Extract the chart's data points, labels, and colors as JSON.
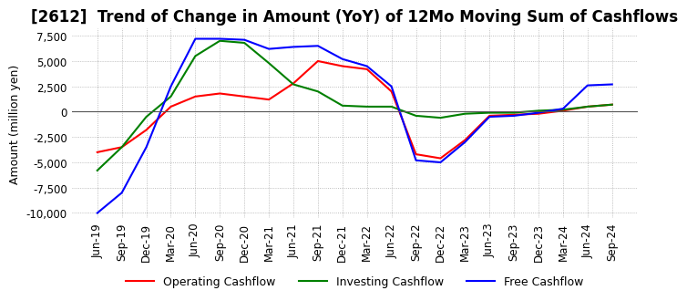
{
  "title": "[2612]  Trend of Change in Amount (YoY) of 12Mo Moving Sum of Cashflows",
  "ylabel": "Amount (million yen)",
  "ylim": [
    -10500,
    8200
  ],
  "yticks": [
    -10000,
    -7500,
    -5000,
    -2500,
    0,
    2500,
    5000,
    7500
  ],
  "x_labels": [
    "Jun-19",
    "Sep-19",
    "Dec-19",
    "Mar-20",
    "Jun-20",
    "Sep-20",
    "Dec-20",
    "Mar-21",
    "Jun-21",
    "Sep-21",
    "Dec-21",
    "Mar-22",
    "Jun-22",
    "Sep-22",
    "Dec-22",
    "Mar-23",
    "Jun-23",
    "Sep-23",
    "Dec-23",
    "Mar-24",
    "Jun-24",
    "Sep-24"
  ],
  "operating": [
    -4000,
    -3500,
    -1800,
    500,
    1500,
    1800,
    1500,
    1200,
    2800,
    5000,
    4500,
    4200,
    2000,
    -4200,
    -4600,
    -2800,
    -400,
    -300,
    -200,
    100,
    500,
    700
  ],
  "investing": [
    -5800,
    -3500,
    -500,
    1500,
    5500,
    7000,
    6800,
    4800,
    2700,
    2000,
    600,
    500,
    500,
    -400,
    -600,
    -200,
    -100,
    -100,
    100,
    200,
    500,
    700
  ],
  "free": [
    -10000,
    -8000,
    -3500,
    2500,
    7200,
    7200,
    7100,
    6200,
    6400,
    6500,
    5200,
    4500,
    2500,
    -4800,
    -5000,
    -3000,
    -500,
    -400,
    -100,
    300,
    2600,
    2700
  ],
  "op_color": "#ff0000",
  "inv_color": "#008000",
  "free_color": "#0000ff",
  "bg_color": "#ffffff",
  "grid_color": "#aaaaaa",
  "title_fontsize": 12,
  "label_fontsize": 9,
  "tick_fontsize": 8.5
}
